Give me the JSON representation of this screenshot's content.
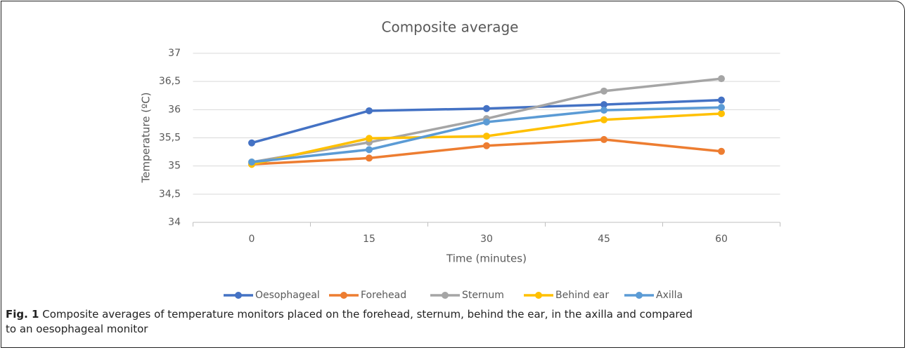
{
  "chart_data": {
    "type": "line",
    "title": "Composite average",
    "x_label": "Time (minutes)",
    "y_label": "Temperature (ºC)",
    "categories": [
      "0",
      "15",
      "30",
      "45",
      "60"
    ],
    "series": [
      {
        "name": "Oesophageal",
        "color": "#4472c4",
        "values": [
          35.41,
          35.98,
          36.02,
          36.09,
          36.17
        ]
      },
      {
        "name": "Forehead",
        "color": "#ed7d31",
        "values": [
          35.03,
          35.14,
          35.36,
          35.47,
          35.26
        ]
      },
      {
        "name": "Sternum",
        "color": "#a5a5a5",
        "values": [
          35.07,
          35.42,
          35.84,
          36.33,
          36.55
        ]
      },
      {
        "name": "Behind ear",
        "color": "#ffc000",
        "values": [
          35.03,
          35.49,
          35.53,
          35.82,
          35.93
        ]
      },
      {
        "name": "Axilla",
        "color": "#5b9bd5",
        "values": [
          35.07,
          35.29,
          35.78,
          35.99,
          36.04
        ]
      }
    ],
    "ylim": [
      34,
      37
    ],
    "yticks": [
      34,
      {
        "value": 34.5,
        "label": "34,5"
      },
      35,
      {
        "value": 35.5,
        "label": "35,5"
      },
      36,
      {
        "value": 36.5,
        "label": "36,5"
      },
      37
    ],
    "grid": true,
    "legend": "bottom"
  },
  "caption": {
    "label": "Fig. 1",
    "text": "Composite averages of temperature monitors placed on the forehead, sternum, behind the ear, in the axilla and compared to an oesophageal monitor"
  }
}
